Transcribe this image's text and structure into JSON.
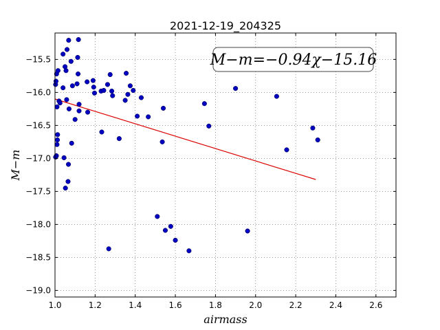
{
  "chart_data": {
    "type": "scatter",
    "title": "2021-12-19_204325",
    "xlabel": "airmass",
    "ylabel": "M−m",
    "xlim": [
      1.0,
      2.7
    ],
    "ylim": [
      -19.1,
      -15.1
    ],
    "y_inverted": true,
    "grid": true,
    "x_ticks": [
      1.0,
      1.2,
      1.4,
      1.6,
      1.8,
      2.0,
      2.2,
      2.4,
      2.6
    ],
    "x_tick_labels": [
      "1.0",
      "1.2",
      "1.4",
      "1.6",
      "1.8",
      "2.0",
      "2.2",
      "2.4",
      "2.6"
    ],
    "y_ticks": [
      -15.5,
      -16.0,
      -16.5,
      -17.0,
      -17.5,
      -18.0,
      -18.5,
      -19.0
    ],
    "y_tick_labels": [
      "−15.5",
      "−16.0",
      "−16.5",
      "−17.0",
      "−17.5",
      "−18.0",
      "−18.5",
      "−19.0"
    ],
    "annotation": "M−m=−0.94χ−15.16",
    "annotation_placement": "top-right",
    "point_color": "#0000c0",
    "fit_color": "#dd0000",
    "fit_line": {
      "x": [
        1.0,
        2.3
      ],
      "y": [
        -16.1,
        -17.32
      ]
    },
    "points": [
      {
        "x": 1.003,
        "y": -15.88
      },
      {
        "x": 1.005,
        "y": -15.83
      },
      {
        "x": 1.008,
        "y": -15.72
      },
      {
        "x": 1.01,
        "y": -16.22
      },
      {
        "x": 1.012,
        "y": -16.72
      },
      {
        "x": 1.013,
        "y": -16.64
      },
      {
        "x": 1.01,
        "y": -16.79
      },
      {
        "x": 1.007,
        "y": -16.96
      },
      {
        "x": 1.003,
        "y": -16.98
      },
      {
        "x": 1.015,
        "y": -15.67
      },
      {
        "x": 1.02,
        "y": -16.13
      },
      {
        "x": 1.025,
        "y": -16.16
      },
      {
        "x": 1.04,
        "y": -15.42
      },
      {
        "x": 1.04,
        "y": -15.93
      },
      {
        "x": 1.045,
        "y": -16.99
      },
      {
        "x": 1.05,
        "y": -15.61
      },
      {
        "x": 1.052,
        "y": -17.45
      },
      {
        "x": 1.055,
        "y": -15.67
      },
      {
        "x": 1.058,
        "y": -16.11
      },
      {
        "x": 1.06,
        "y": -15.35
      },
      {
        "x": 1.065,
        "y": -17.35
      },
      {
        "x": 1.067,
        "y": -17.09
      },
      {
        "x": 1.07,
        "y": -16.25
      },
      {
        "x": 1.068,
        "y": -15.21
      },
      {
        "x": 1.08,
        "y": -15.53
      },
      {
        "x": 1.083,
        "y": -16.77
      },
      {
        "x": 1.087,
        "y": -15.9
      },
      {
        "x": 1.1,
        "y": -16.41
      },
      {
        "x": 1.11,
        "y": -15.87
      },
      {
        "x": 1.113,
        "y": -15.47
      },
      {
        "x": 1.115,
        "y": -15.72
      },
      {
        "x": 1.117,
        "y": -15.2
      },
      {
        "x": 1.12,
        "y": -16.18
      },
      {
        "x": 1.12,
        "y": -16.28
      },
      {
        "x": 1.16,
        "y": -15.84
      },
      {
        "x": 1.163,
        "y": -16.3
      },
      {
        "x": 1.19,
        "y": -15.82
      },
      {
        "x": 1.193,
        "y": -15.92
      },
      {
        "x": 1.197,
        "y": -16.01
      },
      {
        "x": 1.23,
        "y": -15.98
      },
      {
        "x": 1.233,
        "y": -16.6
      },
      {
        "x": 1.243,
        "y": -15.97
      },
      {
        "x": 1.262,
        "y": -15.88
      },
      {
        "x": 1.268,
        "y": -18.37
      },
      {
        "x": 1.275,
        "y": -15.73
      },
      {
        "x": 1.283,
        "y": -15.98
      },
      {
        "x": 1.287,
        "y": -16.05
      },
      {
        "x": 1.32,
        "y": -16.7
      },
      {
        "x": 1.35,
        "y": -16.12
      },
      {
        "x": 1.355,
        "y": -15.71
      },
      {
        "x": 1.363,
        "y": -16.03
      },
      {
        "x": 1.375,
        "y": -15.9
      },
      {
        "x": 1.39,
        "y": -15.97
      },
      {
        "x": 1.41,
        "y": -16.36
      },
      {
        "x": 1.43,
        "y": -16.08
      },
      {
        "x": 1.465,
        "y": -16.37
      },
      {
        "x": 1.51,
        "y": -17.88
      },
      {
        "x": 1.535,
        "y": -16.75
      },
      {
        "x": 1.54,
        "y": -16.24
      },
      {
        "x": 1.55,
        "y": -18.09
      },
      {
        "x": 1.577,
        "y": -18.03
      },
      {
        "x": 1.6,
        "y": -18.24
      },
      {
        "x": 1.668,
        "y": -18.4
      },
      {
        "x": 1.745,
        "y": -16.17
      },
      {
        "x": 1.767,
        "y": -16.51
      },
      {
        "x": 1.9,
        "y": -15.94
      },
      {
        "x": 1.96,
        "y": -18.1
      },
      {
        "x": 2.105,
        "y": -16.06
      },
      {
        "x": 2.155,
        "y": -16.87
      },
      {
        "x": 2.285,
        "y": -16.54
      },
      {
        "x": 2.31,
        "y": -16.72
      }
    ]
  }
}
